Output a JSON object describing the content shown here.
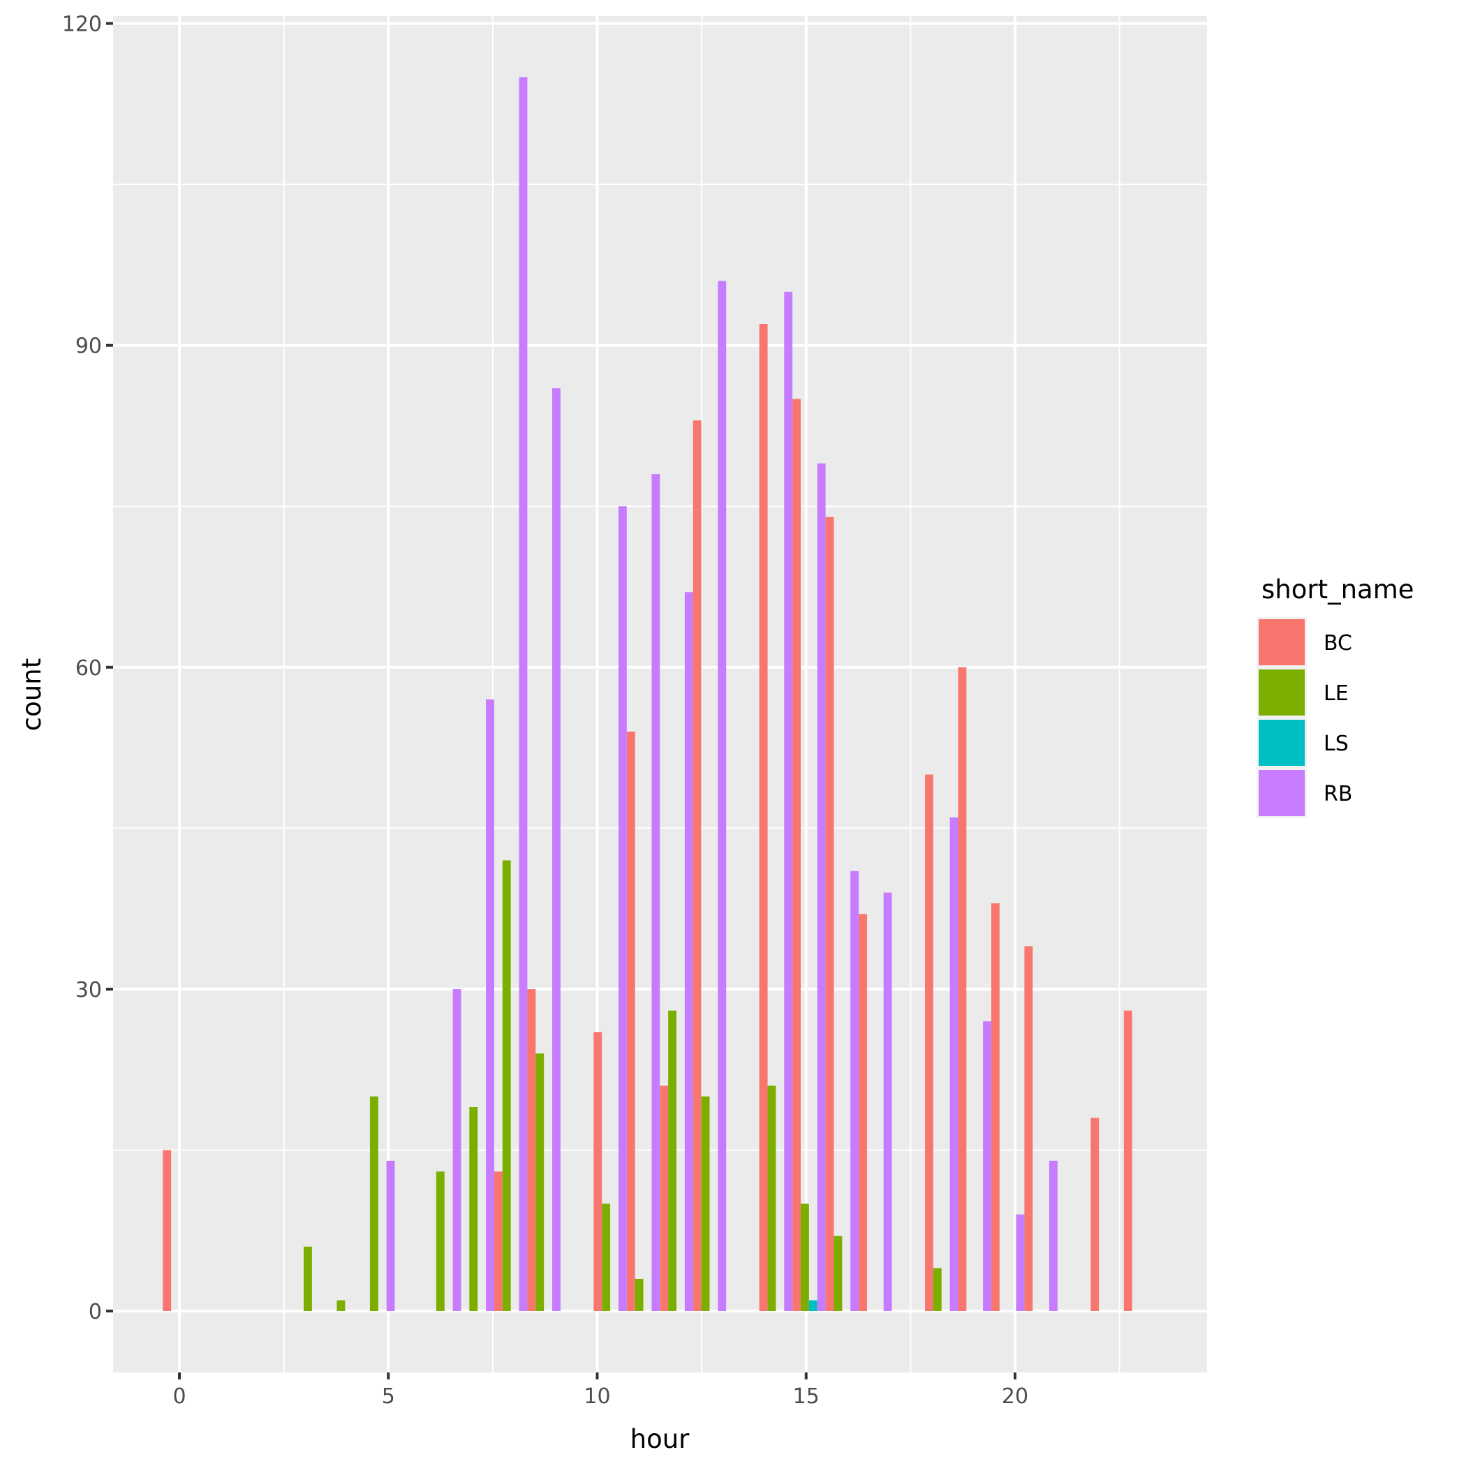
{
  "chart_data": {
    "type": "bar",
    "subtype": "histogram (dodged, 30 bins)",
    "title": "",
    "xlabel": "hour",
    "ylabel": "count",
    "xlim": [
      -0.78,
      24.4
    ],
    "ylim": [
      -5.75,
      120.75
    ],
    "x_ticks": [
      0,
      5,
      10,
      15,
      20
    ],
    "y_ticks": [
      0,
      30,
      60,
      90,
      120
    ],
    "grid": true,
    "legend_position": "right",
    "legend_title": "short_name",
    "bin_count": 30,
    "bin_range": [
      0,
      23
    ],
    "bins": [
      0,
      1,
      2,
      3,
      4,
      5,
      6,
      7,
      8,
      9,
      10,
      11,
      12,
      13,
      14,
      15,
      16,
      17,
      18,
      19,
      20,
      21,
      22,
      23,
      24,
      25,
      26,
      27,
      28,
      29
    ],
    "series": [
      {
        "name": "BC",
        "color": "#F8766D",
        "values": [
          15,
          0,
          0,
          0,
          0,
          0,
          0,
          0,
          0,
          0,
          13,
          30,
          0,
          26,
          54,
          21,
          83,
          0,
          92,
          85,
          74,
          37,
          0,
          50,
          60,
          38,
          34,
          0,
          18,
          28
        ]
      },
      {
        "name": "LE",
        "color": "#7CAE00",
        "values": [
          0,
          0,
          0,
          0,
          6,
          1,
          20,
          0,
          13,
          19,
          42,
          24,
          0,
          10,
          3,
          28,
          20,
          0,
          21,
          10,
          7,
          0,
          0,
          4,
          0,
          0,
          0,
          0,
          0,
          0
        ]
      },
      {
        "name": "LS",
        "color": "#00BFC4",
        "values": [
          0,
          0,
          0,
          0,
          0,
          0,
          0,
          0,
          0,
          0,
          0,
          0,
          0,
          0,
          0,
          0,
          0,
          0,
          0,
          1,
          0,
          0,
          0,
          0,
          0,
          0,
          0,
          0,
          0,
          0
        ]
      },
      {
        "name": "RB",
        "color": "#C77CFF",
        "values": [
          0,
          0,
          0,
          0,
          0,
          0,
          14,
          0,
          30,
          57,
          115,
          86,
          0,
          75,
          78,
          67,
          96,
          0,
          95,
          79,
          41,
          39,
          0,
          46,
          27,
          9,
          14,
          0,
          0,
          0
        ]
      }
    ]
  },
  "legend": {
    "title": "short_name",
    "items": [
      {
        "label": "BC",
        "color": "#F8766D"
      },
      {
        "label": "LE",
        "color": "#7CAE00"
      },
      {
        "label": "LS",
        "color": "#00BFC4"
      },
      {
        "label": "RB",
        "color": "#C77CFF"
      }
    ]
  },
  "axes": {
    "x": {
      "title": "hour",
      "ticks": [
        "0",
        "5",
        "10",
        "15",
        "20"
      ]
    },
    "y": {
      "title": "count",
      "ticks": [
        "0",
        "30",
        "60",
        "90",
        "120"
      ]
    }
  },
  "theme": {
    "panel_bg": "#EBEBEB",
    "grid_color": "#FFFFFF",
    "tick_color": "#333333",
    "tick_label_color": "#4D4D4D"
  }
}
